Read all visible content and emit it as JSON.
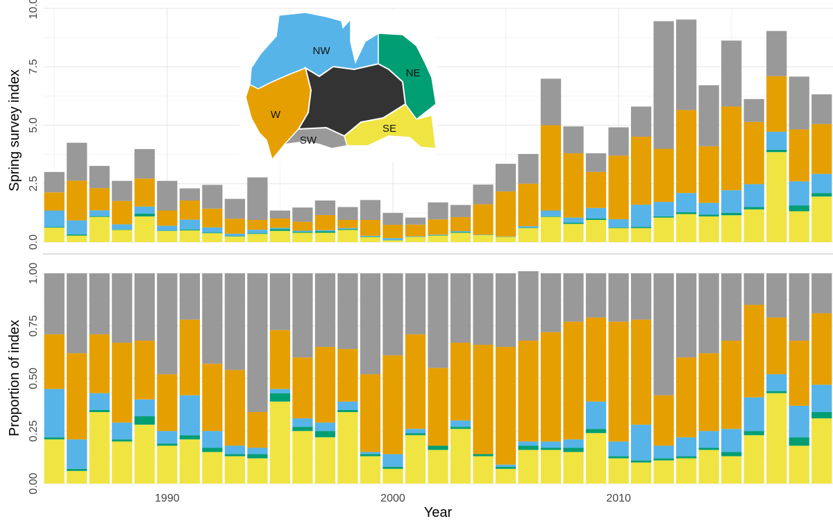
{
  "chart_data": [
    {
      "type": "bar",
      "stacked": true,
      "ylabel": "Spring survey index",
      "xlabel": "",
      "ylim": [
        0,
        10
      ],
      "yticks": [
        "0.0",
        "2.5",
        "5.0",
        "7.5",
        "10.0"
      ],
      "x": [
        1985,
        1986,
        1987,
        1988,
        1989,
        1990,
        1991,
        1992,
        1993,
        1994,
        1995,
        1996,
        1997,
        1998,
        1999,
        2000,
        2001,
        2002,
        2003,
        2004,
        2005,
        2006,
        2007,
        2008,
        2009,
        2010,
        2011,
        2012,
        2013,
        2014,
        2015,
        2016,
        2017,
        2018,
        2019
      ],
      "series": [
        {
          "name": "SE",
          "color": "#f0e442",
          "values": [
            0.62,
            0.28,
            1.08,
            0.52,
            1.1,
            0.48,
            0.5,
            0.38,
            0.24,
            0.35,
            0.48,
            0.4,
            0.4,
            0.52,
            0.22,
            0.08,
            0.22,
            0.28,
            0.4,
            0.3,
            0.22,
            0.6,
            1.08,
            0.78,
            0.95,
            0.6,
            0.6,
            1.05,
            1.2,
            1.1,
            1.15,
            1.4,
            3.85,
            1.32,
            1.95
          ]
        },
        {
          "name": "NE",
          "color": "#009e73",
          "values": [
            0.03,
            0.05,
            0.03,
            0.02,
            0.12,
            0.02,
            0.04,
            0.03,
            0.02,
            0.03,
            0.08,
            0.04,
            0.06,
            0.03,
            0.02,
            0.01,
            0.01,
            0.02,
            0.03,
            0.01,
            0.01,
            0.02,
            0.02,
            0.05,
            0.06,
            0.03,
            0.05,
            0.05,
            0.08,
            0.08,
            0.1,
            0.1,
            0.1,
            0.25,
            0.15
          ]
        },
        {
          "name": "NW",
          "color": "#56b4e9",
          "values": [
            0.7,
            0.6,
            0.25,
            0.22,
            0.3,
            0.2,
            0.42,
            0.22,
            0.1,
            0.15,
            0.05,
            0.05,
            0.05,
            0.05,
            0.03,
            0.08,
            0.02,
            0.02,
            0.04,
            0.01,
            0.01,
            0.06,
            0.25,
            0.22,
            0.45,
            0.35,
            0.95,
            0.62,
            0.82,
            0.5,
            0.97,
            0.98,
            0.77,
            1.03,
            0.82
          ]
        },
        {
          "name": "W",
          "color": "#e69f00",
          "values": [
            0.78,
            1.7,
            0.95,
            1.0,
            1.2,
            0.65,
            0.82,
            0.8,
            0.64,
            0.42,
            0.4,
            0.38,
            0.65,
            0.35,
            0.68,
            0.57,
            0.5,
            0.65,
            0.6,
            1.3,
            1.93,
            1.82,
            3.65,
            2.75,
            1.54,
            2.72,
            2.91,
            2.27,
            3.55,
            2.42,
            3.58,
            2.66,
            2.38,
            2.22,
            2.13
          ]
        },
        {
          "name": "SW",
          "color": "#999999",
          "values": [
            0.87,
            1.62,
            0.95,
            0.86,
            1.26,
            1.27,
            0.52,
            1.02,
            0.85,
            1.82,
            0.34,
            0.61,
            0.62,
            0.55,
            0.85,
            0.51,
            0.3,
            0.73,
            0.52,
            0.84,
            1.18,
            1.27,
            1.99,
            1.15,
            0.8,
            1.21,
            1.29,
            5.46,
            3.87,
            2.61,
            2.82,
            0.98,
            1.93,
            2.26,
            1.27
          ]
        }
      ]
    },
    {
      "type": "bar",
      "stacked": true,
      "ylabel": "Proportion of index",
      "xlabel": "Year",
      "ylim": [
        0,
        1
      ],
      "yticks": [
        "0.00",
        "0.25",
        "0.50",
        "0.75",
        "1.00"
      ],
      "xticks": [
        "1990",
        "2000",
        "2010"
      ],
      "x": [
        1985,
        1986,
        1987,
        1988,
        1989,
        1990,
        1991,
        1992,
        1993,
        1994,
        1995,
        1996,
        1997,
        1998,
        1999,
        2000,
        2001,
        2002,
        2003,
        2004,
        2005,
        2006,
        2007,
        2008,
        2009,
        2010,
        2011,
        2012,
        2013,
        2014,
        2015,
        2016,
        2017,
        2018,
        2019
      ],
      "series": [
        {
          "name": "SE",
          "color": "#f0e442",
          "values": [
            0.21,
            0.06,
            0.34,
            0.2,
            0.28,
            0.18,
            0.21,
            0.15,
            0.13,
            0.12,
            0.39,
            0.25,
            0.22,
            0.34,
            0.13,
            0.07,
            0.23,
            0.16,
            0.26,
            0.13,
            0.07,
            0.16,
            0.16,
            0.15,
            0.24,
            0.12,
            0.1,
            0.11,
            0.12,
            0.16,
            0.13,
            0.23,
            0.43,
            0.18,
            0.31
          ]
        },
        {
          "name": "NE",
          "color": "#009e73",
          "values": [
            0.01,
            0.01,
            0.01,
            0.01,
            0.04,
            0.01,
            0.02,
            0.02,
            0.01,
            0.02,
            0.04,
            0.02,
            0.03,
            0.01,
            0.01,
            0.01,
            0.01,
            0.02,
            0.01,
            0.01,
            0.01,
            0.02,
            0.01,
            0.02,
            0.02,
            0.01,
            0.01,
            0.01,
            0.01,
            0.01,
            0.02,
            0.02,
            0.01,
            0.04,
            0.03
          ]
        },
        {
          "name": "NW",
          "color": "#56b4e9",
          "values": [
            0.23,
            0.14,
            0.08,
            0.08,
            0.08,
            0.06,
            0.19,
            0.08,
            0.04,
            0.03,
            0.02,
            0.04,
            0.04,
            0.04,
            0.01,
            0.06,
            0.02,
            0.0,
            0.03,
            0.0,
            0.01,
            0.02,
            0.03,
            0.04,
            0.13,
            0.07,
            0.17,
            0.06,
            0.09,
            0.08,
            0.11,
            0.16,
            0.08,
            0.15,
            0.13
          ]
        },
        {
          "name": "W",
          "color": "#e69f00",
          "values": [
            0.26,
            0.41,
            0.28,
            0.38,
            0.28,
            0.27,
            0.36,
            0.32,
            0.36,
            0.17,
            0.28,
            0.29,
            0.36,
            0.25,
            0.37,
            0.47,
            0.45,
            0.37,
            0.37,
            0.52,
            0.56,
            0.48,
            0.52,
            0.56,
            0.4,
            0.57,
            0.5,
            0.24,
            0.38,
            0.37,
            0.42,
            0.44,
            0.27,
            0.31,
            0.34
          ]
        },
        {
          "name": "SW",
          "color": "#999999",
          "values": [
            0.29,
            0.38,
            0.29,
            0.33,
            0.32,
            0.48,
            0.22,
            0.43,
            0.46,
            0.66,
            0.27,
            0.4,
            0.35,
            0.36,
            0.48,
            0.39,
            0.29,
            0.45,
            0.33,
            0.34,
            0.35,
            0.33,
            0.28,
            0.23,
            0.21,
            0.23,
            0.22,
            0.58,
            0.4,
            0.38,
            0.32,
            0.15,
            0.21,
            0.32,
            0.19
          ]
        }
      ]
    }
  ],
  "inset_map": {
    "regions": [
      {
        "label": "NW",
        "color": "#56b4e9"
      },
      {
        "label": "NE",
        "color": "#009e73"
      },
      {
        "label": "W",
        "color": "#e69f00"
      },
      {
        "label": "SW",
        "color": "#999999"
      },
      {
        "label": "SE",
        "color": "#f0e442"
      }
    ],
    "interior_color": "#333333"
  }
}
